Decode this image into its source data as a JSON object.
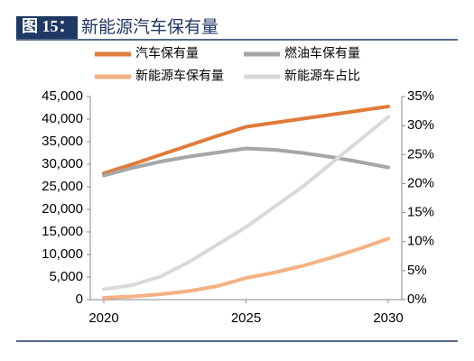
{
  "chart_data": {
    "type": "line",
    "figure_label": "图 15：",
    "title": "新能源汽车保有量",
    "x": [
      2020,
      2021,
      2022,
      2023,
      2024,
      2025,
      2026,
      2027,
      2028,
      2029,
      2030
    ],
    "xlim": [
      2020,
      2030
    ],
    "xticks": [
      2020,
      2025,
      2030
    ],
    "ylim": [
      0,
      45000
    ],
    "yticks": [
      {
        "value": 0,
        "label": "0"
      },
      {
        "value": 5000,
        "label": "5,000"
      },
      {
        "value": 10000,
        "label": "10,000"
      },
      {
        "value": 15000,
        "label": "15,000"
      },
      {
        "value": 20000,
        "label": "20,000"
      },
      {
        "value": 25000,
        "label": "25,000"
      },
      {
        "value": 30000,
        "label": "30,000"
      },
      {
        "value": 35000,
        "label": "35,000"
      },
      {
        "value": 40000,
        "label": "40,000"
      },
      {
        "value": 45000,
        "label": "45,000"
      }
    ],
    "y2lim": [
      0,
      35
    ],
    "y2ticks": [
      {
        "value": 0,
        "label": "0%"
      },
      {
        "value": 5,
        "label": "5%"
      },
      {
        "value": 10,
        "label": "10%"
      },
      {
        "value": 15,
        "label": "15%"
      },
      {
        "value": 20,
        "label": "20%"
      },
      {
        "value": 25,
        "label": "25%"
      },
      {
        "value": 30,
        "label": "30%"
      },
      {
        "value": 35,
        "label": "35%"
      }
    ],
    "series": [
      {
        "name": "汽车保有量",
        "color": "#e07b39",
        "values": [
          28000,
          30000,
          32100,
          34200,
          36300,
          38300,
          39200,
          40100,
          41000,
          41900,
          42800
        ]
      },
      {
        "name": "燃油车保有量",
        "color": "#a6a6a6",
        "values": [
          27500,
          29200,
          30600,
          31700,
          32600,
          33500,
          33200,
          32500,
          31600,
          30500,
          29300
        ]
      },
      {
        "name": "新能源车保有量",
        "color": "#f4b183",
        "values": [
          400,
          700,
          1200,
          1900,
          3000,
          4800,
          6000,
          7500,
          9300,
          11300,
          13500
        ]
      },
      {
        "name": "新能源车占比",
        "color": "#d9d9d9",
        "axis": "y2",
        "values": [
          1.8,
          2.5,
          4,
          6.5,
          9.5,
          12.5,
          16,
          19.5,
          23.5,
          27.5,
          31.5
        ]
      }
    ]
  }
}
